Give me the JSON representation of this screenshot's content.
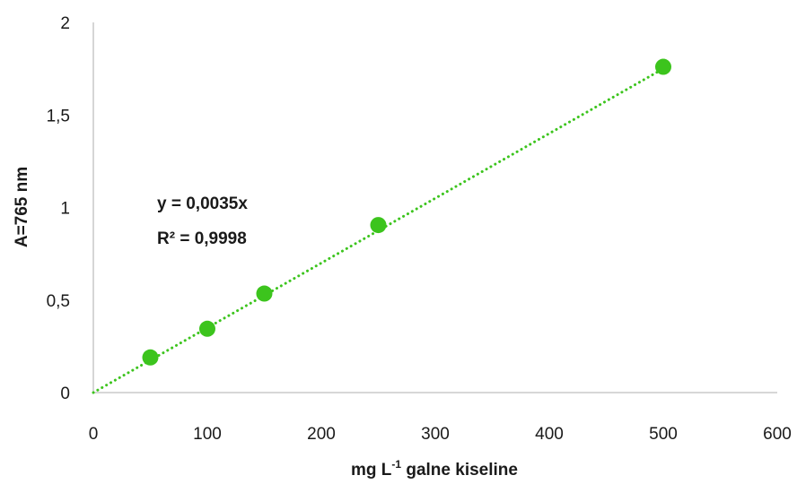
{
  "chart_data": {
    "type": "scatter",
    "title": "",
    "xlabel_parts": {
      "before": "mg L",
      "superscript": "-1",
      "after": " galne kiseline"
    },
    "ylabel": "A=765 nm",
    "xlim": [
      0,
      600
    ],
    "ylim": [
      0,
      2
    ],
    "x_ticks": [
      0,
      100,
      200,
      300,
      400,
      500,
      600
    ],
    "x_tick_labels": [
      "0",
      "100",
      "200",
      "300",
      "400",
      "500",
      "600"
    ],
    "y_ticks": [
      0,
      0.5,
      1,
      1.5,
      2
    ],
    "y_tick_labels": [
      "0",
      "0,5",
      "1",
      "1,5",
      "2"
    ],
    "grid": false,
    "legend": "none",
    "series": [
      {
        "x": [
          50,
          100,
          150,
          250,
          500
        ],
        "y": [
          0.19,
          0.345,
          0.535,
          0.905,
          1.76
        ],
        "color": "#3cc41d"
      }
    ],
    "trendline": {
      "type": "linear",
      "slope": 0.0035,
      "intercept": 0,
      "x_range": [
        0,
        500
      ],
      "style": "dotted",
      "color": "#3cc41d"
    },
    "annotations": {
      "equation": "y = 0,0035x",
      "r_squared": "R² = 0,9998"
    }
  }
}
